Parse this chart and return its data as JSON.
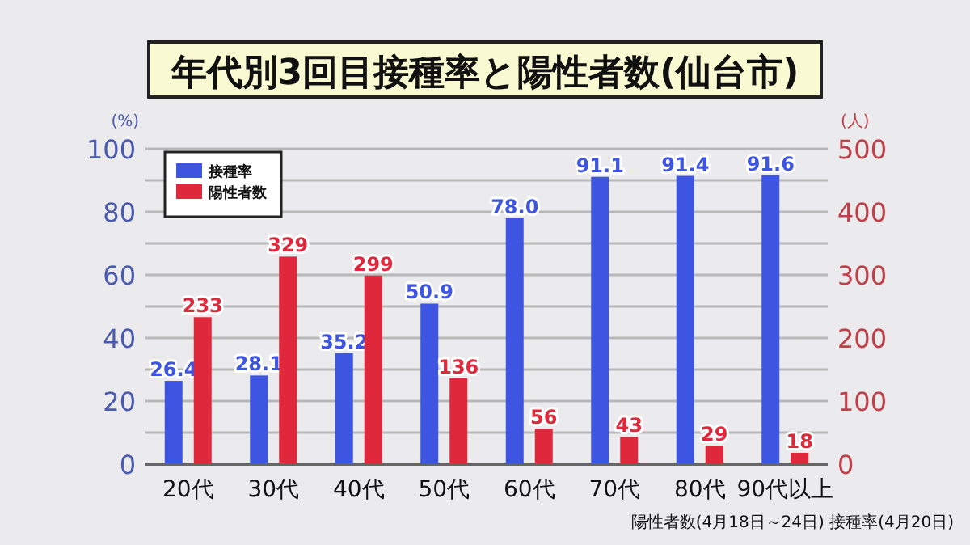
{
  "chart_data": {
    "type": "bar",
    "title": "年代別3回目接種率と陽性者数(仙台市)",
    "categories": [
      "20代",
      "30代",
      "40代",
      "50代",
      "60代",
      "70代",
      "80代",
      "90代以上"
    ],
    "series": [
      {
        "name": "接種率",
        "color": "#3d55e0",
        "values": [
          26.4,
          28.1,
          35.2,
          50.9,
          78.0,
          91.1,
          91.4,
          91.6
        ],
        "value_labels": [
          "26.4",
          "28.1",
          "35.2",
          "50.9",
          "78.0",
          "91.1",
          "91.4",
          "91.6"
        ]
      },
      {
        "name": "陽性者数",
        "color": "#e0283c",
        "axis": "y2",
        "values": [
          233,
          329,
          299,
          136,
          56,
          43,
          29,
          18
        ],
        "value_labels": [
          "233",
          "329",
          "299",
          "136",
          "56",
          "43",
          "29",
          "18"
        ]
      }
    ],
    "ylabel": "(%)",
    "y2label": "(人)",
    "ylim": [
      0,
      100
    ],
    "yticks": [
      0,
      {
        "value": 10,
        "label": null
      },
      20,
      {
        "value": 30,
        "label": null
      },
      40,
      {
        "value": 50,
        "label": null
      },
      60,
      {
        "value": 70,
        "label": null
      },
      80,
      {
        "value": 90,
        "label": null
      },
      100
    ],
    "y2lim": [
      0,
      500
    ],
    "y2ticks": [
      0,
      100,
      200,
      300,
      400,
      500
    ],
    "grid": "y",
    "legend": "top left",
    "annotations": [
      "陽性者数(4月18日～24日)  接種率(4月20日)"
    ]
  }
}
